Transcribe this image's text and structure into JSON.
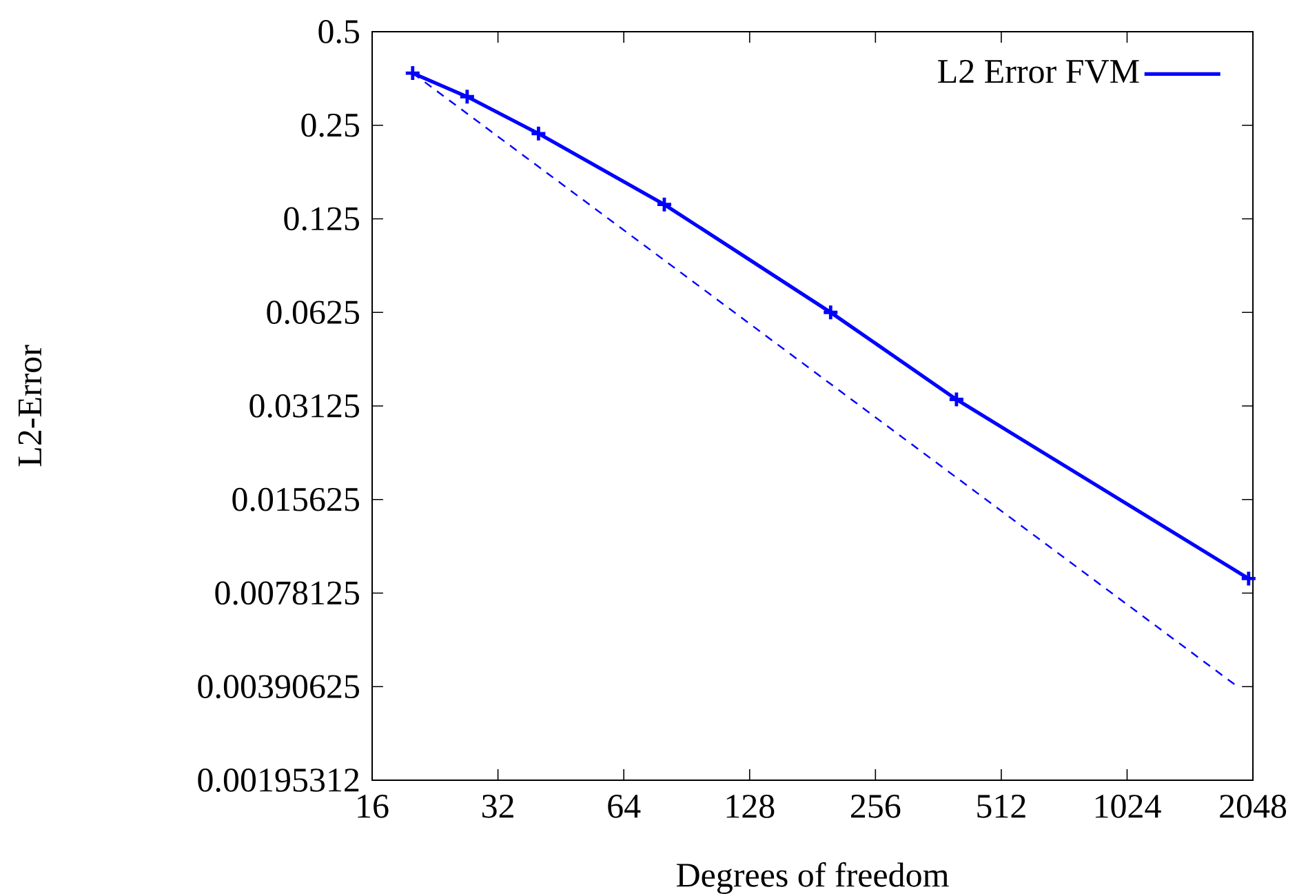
{
  "chart_data": {
    "type": "line",
    "xlabel": "Degrees of freedom",
    "ylabel": "L2-Error",
    "log": "xy",
    "grid": false,
    "legend": "top right",
    "xlim": [
      16,
      2048
    ],
    "ylim": [
      0.001953125,
      0.5
    ],
    "xticks": [
      16,
      32,
      64,
      128,
      256,
      512,
      1024,
      2048
    ],
    "yticks": [
      {
        "value": 0.001953125,
        "label": "0.00195312"
      },
      0.00390625,
      0.0078125,
      0.015625,
      0.03125,
      0.0625,
      0.125,
      0.25,
      0.5
    ],
    "series": [
      {
        "name": "L2 Error FVM",
        "color": "#0000ff",
        "marker": "cross",
        "line_style": "solid",
        "x": [
          20,
          27,
          40,
          80,
          200,
          400,
          2000
        ],
        "values": [
          0.368,
          0.309,
          0.235,
          0.139,
          0.0625,
          0.0328,
          0.0087
        ]
      },
      {
        "color": "#0000ff",
        "marker": "none",
        "line_style": "dashed",
        "x": [
          20,
          1900
        ],
        "values": [
          0.368,
          0.00387
        ]
      }
    ]
  }
}
